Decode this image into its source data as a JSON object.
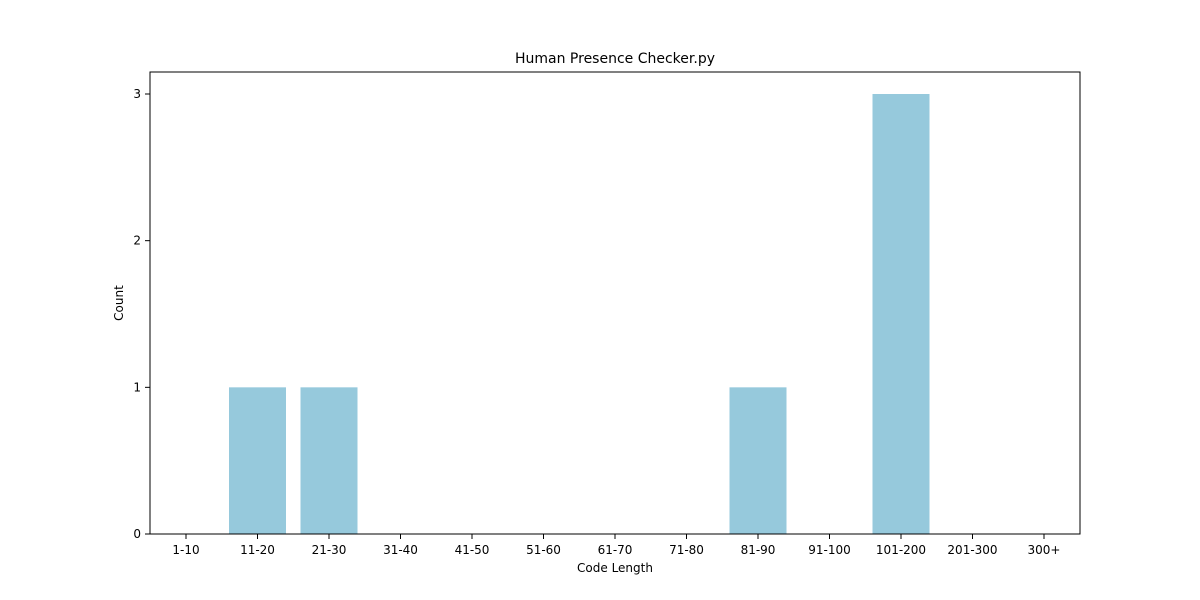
{
  "chart_data": {
    "type": "bar",
    "title": "Human Presence Checker.py",
    "xlabel": "Code Length",
    "ylabel": "Count",
    "categories": [
      "1-10",
      "11-20",
      "21-30",
      "31-40",
      "41-50",
      "51-60",
      "61-70",
      "71-80",
      "81-90",
      "91-100",
      "101-200",
      "201-300",
      "300+"
    ],
    "values": [
      0,
      1,
      1,
      0,
      0,
      0,
      0,
      0,
      1,
      0,
      3,
      0,
      0
    ],
    "yticks": [
      "0",
      "1",
      "2",
      "3"
    ],
    "ylim": [
      0,
      3.15
    ],
    "grid": false,
    "bar_color": "#96c9dc"
  }
}
